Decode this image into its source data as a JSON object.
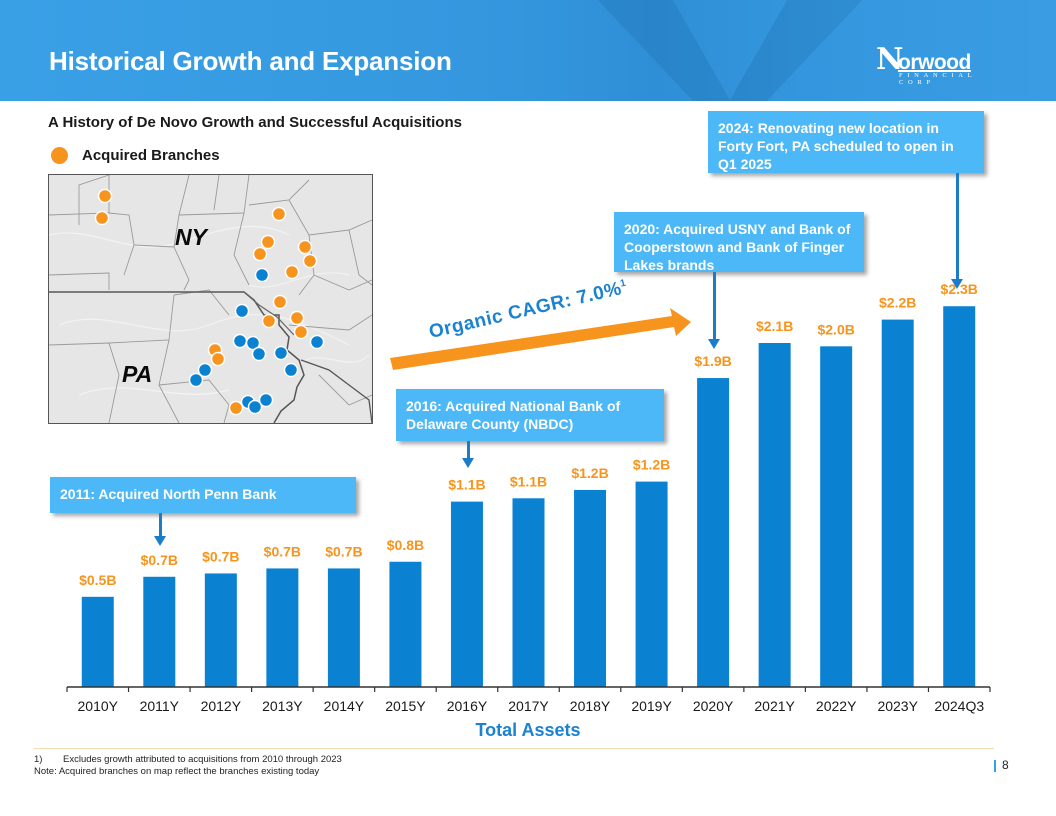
{
  "header": {
    "title": "Historical Growth and Expansion",
    "logo": {
      "initial": "N",
      "word": "orwood",
      "tagline": "FINANCIAL CORP"
    }
  },
  "subtitle": "A History of De Novo Growth and Successful Acquisitions",
  "legend": {
    "label": "Acquired Branches",
    "color": "#f7941d"
  },
  "map": {
    "state_labels": [
      "NY",
      "PA"
    ],
    "acquired_color": "#f7941d",
    "existing_color": "#0a82d1"
  },
  "callouts": {
    "c2011": "2011: Acquired North Penn Bank",
    "c2016": "2016: Acquired National Bank of Delaware County (NBDC)",
    "c2020": "2020: Acquired USNY and Bank of Cooperstown and Bank of Finger Lakes brands",
    "c2024": "2024: Renovating new location in Forty Fort, PA scheduled to open in Q1 2025"
  },
  "cagr": {
    "label": "Organic CAGR: 7.0%",
    "footnote_mark": "1"
  },
  "chart_data": {
    "type": "bar",
    "title": "",
    "xlabel": "Total Assets",
    "ylabel": "",
    "units": "$B",
    "ylim": [
      0,
      2.5
    ],
    "grid": false,
    "legend": "none",
    "bar_color": "#0a82d1",
    "label_color": "#f7941d",
    "categories": [
      "2010Y",
      "2011Y",
      "2012Y",
      "2013Y",
      "2014Y",
      "2015Y",
      "2016Y",
      "2017Y",
      "2018Y",
      "2019Y",
      "2020Y",
      "2021Y",
      "2022Y",
      "2023Y",
      "2024Q3"
    ],
    "values": [
      0.54,
      0.66,
      0.68,
      0.71,
      0.71,
      0.75,
      1.11,
      1.13,
      1.18,
      1.23,
      1.85,
      2.06,
      2.04,
      2.2,
      2.28
    ],
    "data_labels": [
      "$0.5B",
      "$0.7B",
      "$0.7B",
      "$0.7B",
      "$0.7B",
      "$0.8B",
      "$1.1B",
      "$1.1B",
      "$1.2B",
      "$1.2B",
      "$1.9B",
      "$2.1B",
      "$2.0B",
      "$2.2B",
      "$2.3B"
    ]
  },
  "footnotes": {
    "n1_num": "1)",
    "n1_text": "Excludes growth attributed to acquisitions from 2010 through 2023",
    "note": "Note: Acquired branches on map reflect the branches existing today"
  },
  "page_number": "8"
}
